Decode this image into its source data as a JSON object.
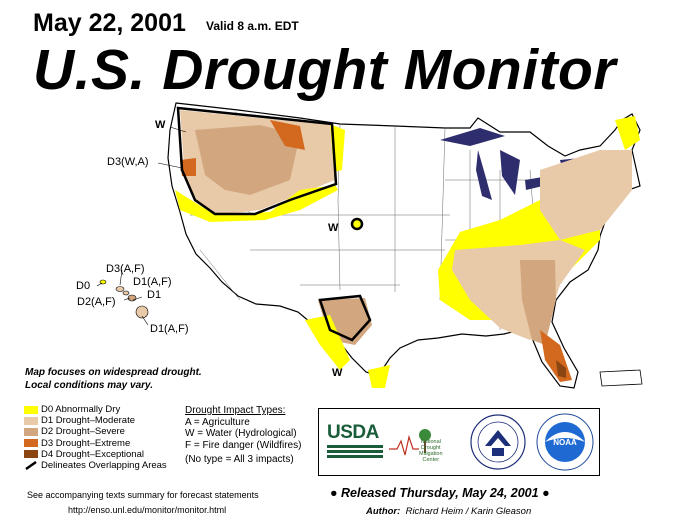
{
  "header": {
    "date": "May 22, 2001",
    "valid": "Valid 8 a.m. EDT",
    "title": "U.S. Drought Monitor"
  },
  "map_labels": {
    "w_northwest": "W",
    "d3_wa": "D3(W,A)",
    "w_plains": "W",
    "d3_af": "D3(A,F)",
    "d0": "D0",
    "d1_af_upper": "D1(A,F)",
    "d2_af": "D2(A,F)",
    "d1": "D1",
    "d1_af_lower": "D1(A,F)",
    "w_texas": "W"
  },
  "focus_note": {
    "line1": "Map focuses on widespread drought.",
    "line2": "Local conditions may vary."
  },
  "legend": {
    "items": [
      {
        "label": "D0 Abnormally Dry",
        "color": "#ffff00"
      },
      {
        "label": "D1 Drought–Moderate",
        "color": "#fcd37f"
      },
      {
        "label": "D2 Drought–Severe",
        "color": "#d2a77f"
      },
      {
        "label": "D3 Drought–Extreme",
        "color": "#d2691e"
      },
      {
        "label": "D4 Drought–Exceptional",
        "color": "#8b4513"
      }
    ],
    "overlap_label": "Delineates Overlapping Areas"
  },
  "impacts": {
    "heading": "Drought Impact Types:",
    "a": "A = Agriculture",
    "w": "W = Water (Hydrological)",
    "f": "F = Fire danger (Wildfires)",
    "none": "(No type = All 3 impacts)"
  },
  "logos": {
    "usda": "USDA",
    "ndmc_line1": "National",
    "ndmc_line2": "Drought",
    "ndmc_line3": "Mitigation",
    "ndmc_line4": "Center",
    "noaa": "NOAA"
  },
  "footer": {
    "texts_note": "See accompanying texts summary for forecast statements",
    "url": "http://enso.unl.edu/monitor/monitor.html",
    "released": "Released Thursday, May 24, 2001",
    "author_label": "Author:",
    "author_names": "Richard Heim / Karin Gleason"
  },
  "colors": {
    "d0": "#ffff00",
    "d1": "#fcd37f",
    "d2": "#d2a77f",
    "d3": "#d2691e",
    "d4": "#8b4513",
    "lakes": "#2e2e6e"
  }
}
